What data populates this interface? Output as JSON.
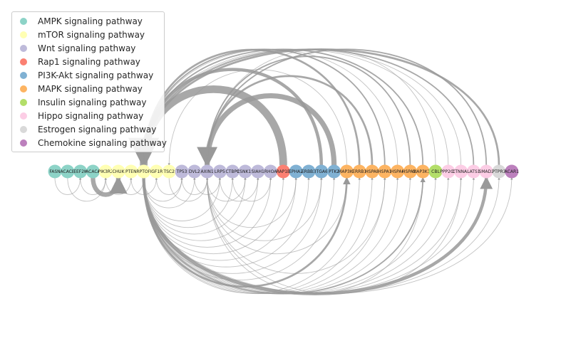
{
  "legend": {
    "items": [
      {
        "label": "AMPK signaling pathway",
        "color": "#8dd3c7"
      },
      {
        "label": "mTOR signaling pathway",
        "color": "#ffffb3"
      },
      {
        "label": "Wnt signaling pathway",
        "color": "#bebada"
      },
      {
        "label": "Rap1 signaling pathway",
        "color": "#fb8072"
      },
      {
        "label": "PI3K-Akt signaling pathway",
        "color": "#80b1d3"
      },
      {
        "label": "MAPK signaling pathway",
        "color": "#fdb462"
      },
      {
        "label": "Insulin signaling pathway",
        "color": "#b3de69"
      },
      {
        "label": "Hippo signaling pathway",
        "color": "#fccde5"
      },
      {
        "label": "Estrogen signaling pathway",
        "color": "#d9d9d9"
      },
      {
        "label": "Chemokine signaling pathway",
        "color": "#bc80bd"
      }
    ]
  },
  "nodes": [
    {
      "label": "FASN",
      "pathway": 0
    },
    {
      "label": "ACACB",
      "pathway": 0
    },
    {
      "label": "EEF2K",
      "pathway": 0
    },
    {
      "label": "ACACA",
      "pathway": 0
    },
    {
      "label": "PIK3R2",
      "pathway": 1
    },
    {
      "label": "CHUK",
      "pathway": 1
    },
    {
      "label": "PTEN",
      "pathway": 1
    },
    {
      "label": "RPTOR",
      "pathway": 1
    },
    {
      "label": "IGF1R",
      "pathway": 1
    },
    {
      "label": "TSC2",
      "pathway": 1
    },
    {
      "label": "TP53",
      "pathway": 2
    },
    {
      "label": "DVL2",
      "pathway": 2
    },
    {
      "label": "AXIN1",
      "pathway": 2
    },
    {
      "label": "LRP5",
      "pathway": 2
    },
    {
      "label": "CTBP1",
      "pathway": 2
    },
    {
      "label": "CSNK1E",
      "pathway": 2
    },
    {
      "label": "SIAH1",
      "pathway": 2
    },
    {
      "label": "RHOA",
      "pathway": 2
    },
    {
      "label": "RAP1B",
      "pathway": 3
    },
    {
      "label": "EPHA2",
      "pathway": 4
    },
    {
      "label": "ERBB3",
      "pathway": 4
    },
    {
      "label": "ITGA6",
      "pathway": 4
    },
    {
      "label": "PTK2",
      "pathway": 4
    },
    {
      "label": "MAP3K2",
      "pathway": 5
    },
    {
      "label": "ERRB1",
      "pathway": 5
    },
    {
      "label": "HSPA8",
      "pathway": 5
    },
    {
      "label": "HSPA1",
      "pathway": 5
    },
    {
      "label": "HSPA6",
      "pathway": 5
    },
    {
      "label": "HSPA1L",
      "pathway": 5
    },
    {
      "label": "MAP3K11",
      "pathway": 5
    },
    {
      "label": "CBL",
      "pathway": 6
    },
    {
      "label": "PPP2CB",
      "pathway": 7
    },
    {
      "label": "CTNNA1",
      "pathway": 7
    },
    {
      "label": "LATS1",
      "pathway": 7
    },
    {
      "label": "SMAD2",
      "pathway": 7
    },
    {
      "label": "PTPR3",
      "pathway": 8
    },
    {
      "label": "ACAR1",
      "pathway": 9
    }
  ],
  "edges": [
    {
      "from": 3,
      "to": 5,
      "weight": 7
    },
    {
      "from": 1,
      "to": 4,
      "weight": 1
    },
    {
      "from": 0,
      "to": 2,
      "weight": 1
    },
    {
      "from": 2,
      "to": 4,
      "weight": 1
    },
    {
      "from": 5,
      "to": 7,
      "weight": 1
    },
    {
      "from": 7,
      "to": 10,
      "weight": 1
    },
    {
      "from": 9,
      "to": 12,
      "weight": 1
    },
    {
      "from": 10,
      "to": 12,
      "weight": 1
    },
    {
      "from": 11,
      "to": 13,
      "weight": 1
    },
    {
      "from": 12,
      "to": 15,
      "weight": 1
    },
    {
      "from": 13,
      "to": 16,
      "weight": 1
    },
    {
      "from": 14,
      "to": 17,
      "weight": 1
    },
    {
      "from": 18,
      "to": 7,
      "weight": 12
    },
    {
      "from": 22,
      "to": 12,
      "weight": 8
    },
    {
      "from": 21,
      "to": 7,
      "weight": 5
    },
    {
      "from": 24,
      "to": 7,
      "weight": 3
    },
    {
      "from": 25,
      "to": 12,
      "weight": 3
    },
    {
      "from": 26,
      "to": 7,
      "weight": 2
    },
    {
      "from": 28,
      "to": 12,
      "weight": 2
    },
    {
      "from": 29,
      "to": 7,
      "weight": 2
    },
    {
      "from": 33,
      "to": 7,
      "weight": 2
    },
    {
      "from": 35,
      "to": 7,
      "weight": 3
    },
    {
      "from": 34,
      "to": 12,
      "weight": 2
    },
    {
      "from": 31,
      "to": 7,
      "weight": 1
    },
    {
      "from": 30,
      "to": 12,
      "weight": 1
    },
    {
      "from": 27,
      "to": 7,
      "weight": 1
    },
    {
      "from": 32,
      "to": 7,
      "weight": 1
    },
    {
      "from": 23,
      "to": 9,
      "weight": 1
    },
    {
      "from": 7,
      "to": 34,
      "weight": 5
    },
    {
      "from": 7,
      "to": 23,
      "weight": 3
    },
    {
      "from": 7,
      "to": 29,
      "weight": 2
    },
    {
      "from": 7,
      "to": 30,
      "weight": 1
    },
    {
      "from": 7,
      "to": 31,
      "weight": 1
    },
    {
      "from": 7,
      "to": 32,
      "weight": 1
    },
    {
      "from": 7,
      "to": 33,
      "weight": 1
    },
    {
      "from": 7,
      "to": 35,
      "weight": 1
    },
    {
      "from": 7,
      "to": 36,
      "weight": 1
    },
    {
      "from": 7,
      "to": 28,
      "weight": 1
    },
    {
      "from": 7,
      "to": 27,
      "weight": 1
    },
    {
      "from": 7,
      "to": 26,
      "weight": 1
    },
    {
      "from": 7,
      "to": 25,
      "weight": 1
    },
    {
      "from": 7,
      "to": 24,
      "weight": 1
    },
    {
      "from": 7,
      "to": 22,
      "weight": 1
    },
    {
      "from": 7,
      "to": 21,
      "weight": 1
    },
    {
      "from": 7,
      "to": 20,
      "weight": 1
    },
    {
      "from": 7,
      "to": 19,
      "weight": 1
    },
    {
      "from": 7,
      "to": 18,
      "weight": 1
    },
    {
      "from": 7,
      "to": 17,
      "weight": 1
    },
    {
      "from": 7,
      "to": 16,
      "weight": 1
    },
    {
      "from": 7,
      "to": 15,
      "weight": 1
    },
    {
      "from": 7,
      "to": 14,
      "weight": 1
    },
    {
      "from": 7,
      "to": 13,
      "weight": 1
    },
    {
      "from": 7,
      "to": 11,
      "weight": 1
    },
    {
      "from": 8,
      "to": 10,
      "weight": 1
    },
    {
      "from": 6,
      "to": 8,
      "weight": 1
    },
    {
      "from": 4,
      "to": 6,
      "weight": 1
    },
    {
      "from": 12,
      "to": 19,
      "weight": 1
    },
    {
      "from": 12,
      "to": 21,
      "weight": 1
    },
    {
      "from": 12,
      "to": 23,
      "weight": 1
    },
    {
      "from": 12,
      "to": 26,
      "weight": 1
    },
    {
      "from": 12,
      "to": 29,
      "weight": 1
    },
    {
      "from": 12,
      "to": 32,
      "weight": 1
    }
  ]
}
